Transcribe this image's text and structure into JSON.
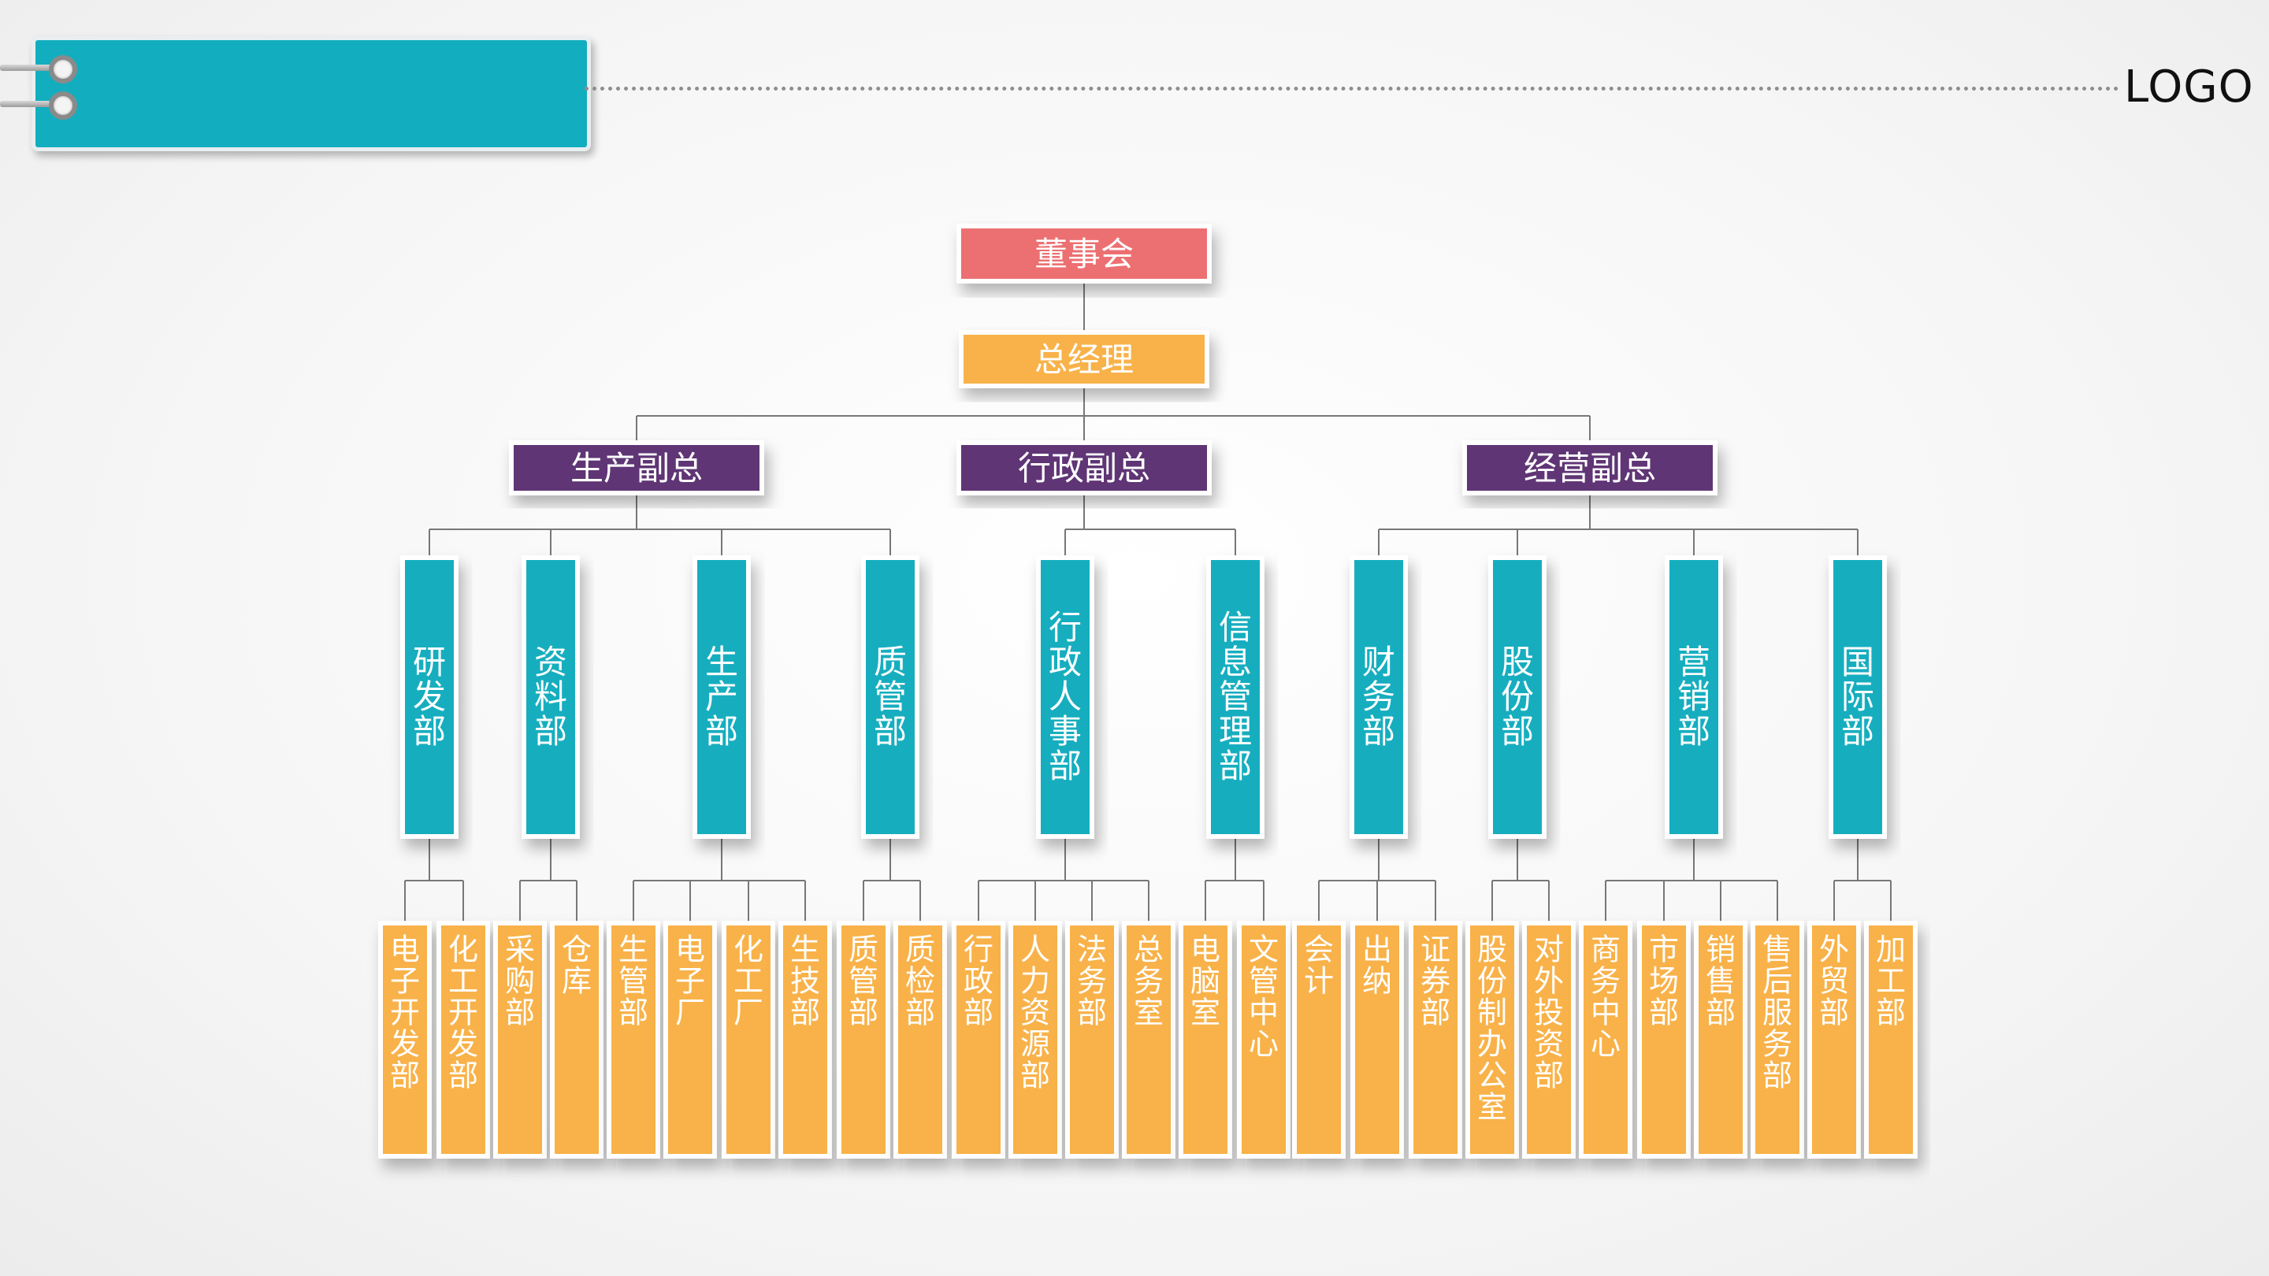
{
  "header": {
    "title": "",
    "logo": "LOGO"
  },
  "colors": {
    "top": "#ec6f72",
    "manager": "#f8b24a",
    "vice": "#5e3575",
    "dept": "#12aebf",
    "unit": "#f8b24a",
    "accent": "#12aebf"
  },
  "org": {
    "board": "董事会",
    "general_manager": "总经理",
    "vice_presidents": [
      {
        "label": "生产副总",
        "departments": [
          {
            "label": "研发部",
            "units": [
              "电子开发部",
              "化工开发部"
            ]
          },
          {
            "label": "资料部",
            "units": [
              "采购部",
              "仓库"
            ]
          },
          {
            "label": "生产部",
            "units": [
              "生管部",
              "电子厂",
              "化工厂",
              "生技部"
            ]
          },
          {
            "label": "质管部",
            "units": [
              "质管部",
              "质检部"
            ]
          }
        ]
      },
      {
        "label": "行政副总",
        "departments": [
          {
            "label": "行政人事部",
            "units": [
              "行政部",
              "人力资源部",
              "法务部",
              "总务室"
            ]
          },
          {
            "label": "信息管理部",
            "units": [
              "电脑室",
              "文管中心"
            ]
          }
        ]
      },
      {
        "label": "经营副总",
        "departments": [
          {
            "label": "财务部",
            "units": [
              "会计",
              "出纳",
              "证券部"
            ]
          },
          {
            "label": "股份部",
            "units": [
              "股份制办公室",
              "对外投资部"
            ]
          },
          {
            "label": "营销部",
            "units": [
              "商务中心",
              "市场部",
              "销售部",
              "售后服务部"
            ]
          },
          {
            "label": "国际部",
            "units": [
              "外贸部",
              "加工部"
            ]
          }
        ]
      }
    ]
  }
}
